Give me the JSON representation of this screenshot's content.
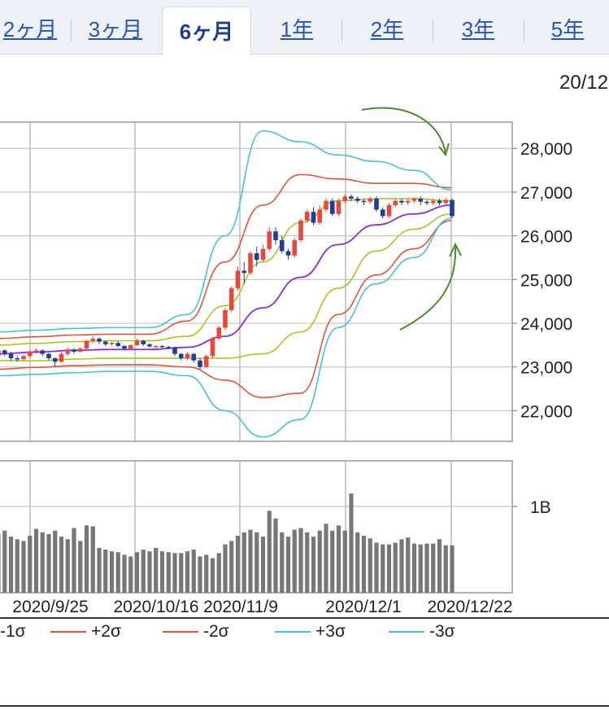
{
  "tabs": [
    {
      "label": "2ヶ月"
    },
    {
      "label": "3ヶ月"
    },
    {
      "label": "6ヶ月"
    },
    {
      "label": "1年"
    },
    {
      "label": "2年"
    },
    {
      "label": "3年"
    },
    {
      "label": "5年"
    }
  ],
  "active_tab": "6ヶ月",
  "date_header": "20/12",
  "colors": {
    "sma": "#8a2be2",
    "sigma1": "#a8c81e",
    "sigma2": "#e0553a",
    "sigma3": "#46c2d8",
    "candle_up": "#e8473e",
    "candle_down": "#1d3e9a",
    "volume": "#777777",
    "annotation": "#4a8c2a"
  },
  "legend": [
    {
      "label": "-1σ",
      "color": "#a8c81e"
    },
    {
      "label": "+2σ",
      "color": "#e0553a"
    },
    {
      "label": "-2σ",
      "color": "#e0553a"
    },
    {
      "label": "+3σ",
      "color": "#46c2d8"
    },
    {
      "label": "-3σ",
      "color": "#46c2d8"
    }
  ],
  "chart_data": {
    "type": "line",
    "ylim": [
      21300,
      28600
    ],
    "yticks": [
      "28,000",
      "27,000",
      "26,000",
      "25,000",
      "24,000",
      "23,000",
      "22,000"
    ],
    "xticks": [
      "2020/9/25",
      "2020/10/16",
      "2020/11/9",
      "2020/12/1",
      "2020/12/22"
    ],
    "volume_tick": "1B",
    "series": [
      {
        "key": "sma",
        "values": [
          23300,
          23340,
          23380,
          23400,
          23400,
          23450,
          23700,
          24350,
          25050,
          25800,
          26250,
          26500,
          26700
        ]
      },
      {
        "key": "p1",
        "values": [
          23500,
          23540,
          23580,
          23600,
          23600,
          23700,
          24400,
          25400,
          26300,
          26800,
          26850,
          26850,
          26800
        ]
      },
      {
        "key": "m1",
        "values": [
          23150,
          23140,
          23180,
          23200,
          23200,
          23200,
          23200,
          23300,
          23800,
          24800,
          25650,
          26150,
          26500
        ]
      },
      {
        "key": "p2",
        "values": [
          23650,
          23690,
          23730,
          23750,
          23750,
          24050,
          25400,
          26700,
          27400,
          27300,
          27200,
          27200,
          27100
        ]
      },
      {
        "key": "m2",
        "values": [
          22950,
          22990,
          23030,
          23050,
          23050,
          23000,
          22700,
          22300,
          22400,
          24200,
          25100,
          25700,
          26350
        ]
      },
      {
        "key": "p3",
        "values": [
          23800,
          23840,
          23880,
          23900,
          23900,
          24200,
          26000,
          28400,
          28150,
          27850,
          27700,
          27500,
          27050
        ]
      },
      {
        "key": "m3",
        "values": [
          22800,
          22830,
          22870,
          22900,
          22900,
          22800,
          22000,
          21400,
          21800,
          23900,
          24900,
          25500,
          26400
        ]
      }
    ],
    "candles": [
      [
        23250,
        23380,
        23420,
        23200
      ],
      [
        23380,
        23300,
        23400,
        23250
      ],
      [
        23300,
        23200,
        23350,
        23150
      ],
      [
        23200,
        23180,
        23260,
        23120
      ],
      [
        23180,
        23250,
        23280,
        23150
      ],
      [
        23250,
        23350,
        23380,
        23200
      ],
      [
        23350,
        23380,
        23420,
        23300
      ],
      [
        23380,
        23300,
        23400,
        23250
      ],
      [
        23300,
        23200,
        23320,
        23150
      ],
      [
        23200,
        23120,
        23220,
        23000
      ],
      [
        23120,
        23300,
        23350,
        23100
      ],
      [
        23300,
        23400,
        23450,
        23250
      ],
      [
        23400,
        23350,
        23430,
        23300
      ],
      [
        23350,
        23420,
        23460,
        23320
      ],
      [
        23420,
        23600,
        23620,
        23380
      ],
      [
        23600,
        23650,
        23700,
        23550
      ],
      [
        23650,
        23580,
        23680,
        23520
      ],
      [
        23580,
        23520,
        23600,
        23480
      ],
      [
        23520,
        23550,
        23580,
        23480
      ],
      [
        23550,
        23480,
        23600,
        23450
      ],
      [
        23480,
        23420,
        23500,
        23380
      ],
      [
        23420,
        23500,
        23520,
        23400
      ],
      [
        23500,
        23600,
        23650,
        23480
      ],
      [
        23600,
        23520,
        23620,
        23480
      ],
      [
        23520,
        23470,
        23540,
        23440
      ],
      [
        23470,
        23480,
        23500,
        23440
      ],
      [
        23480,
        23460,
        23500,
        23430
      ],
      [
        23460,
        23450,
        23480,
        23420
      ],
      [
        23450,
        23300,
        23470,
        23250
      ],
      [
        23300,
        23200,
        23320,
        23150
      ],
      [
        23200,
        23300,
        23350,
        23150
      ],
      [
        23300,
        23150,
        23320,
        23100
      ],
      [
        23150,
        23000,
        23200,
        22950
      ],
      [
        23000,
        23250,
        23280,
        22980
      ],
      [
        23250,
        23650,
        23680,
        23200
      ],
      [
        23650,
        23900,
        23950,
        23600
      ],
      [
        23900,
        24300,
        24350,
        23850
      ],
      [
        24300,
        24800,
        24850,
        24250
      ],
      [
        24800,
        25200,
        25300,
        24750
      ],
      [
        25200,
        25150,
        25400,
        24900
      ],
      [
        25150,
        25600,
        25650,
        25100
      ],
      [
        25600,
        25450,
        25750,
        25300
      ],
      [
        25450,
        25700,
        25800,
        25400
      ],
      [
        25700,
        26100,
        26200,
        25650
      ],
      [
        26100,
        25900,
        26200,
        25800
      ],
      [
        25900,
        25650,
        26000,
        25600
      ],
      [
        25650,
        25550,
        25700,
        25450
      ],
      [
        25550,
        25900,
        25950,
        25500
      ],
      [
        25900,
        26350,
        26400,
        25850
      ],
      [
        26350,
        26550,
        26600,
        26300
      ],
      [
        26550,
        26300,
        26650,
        26250
      ],
      [
        26300,
        26600,
        26700,
        26250
      ],
      [
        26600,
        26800,
        26850,
        26550
      ],
      [
        26800,
        26500,
        26850,
        26450
      ],
      [
        26500,
        26800,
        26850,
        26450
      ],
      [
        26800,
        26900,
        26950,
        26750
      ],
      [
        26900,
        26850,
        26950,
        26800
      ],
      [
        26850,
        26800,
        26900,
        26750
      ],
      [
        26800,
        26780,
        26850,
        26700
      ],
      [
        26780,
        26850,
        26900,
        26730
      ],
      [
        26850,
        26600,
        26900,
        26550
      ],
      [
        26600,
        26450,
        26650,
        26400
      ],
      [
        26450,
        26700,
        26750,
        26400
      ],
      [
        26700,
        26800,
        26850,
        26650
      ],
      [
        26800,
        26760,
        26850,
        26700
      ],
      [
        26760,
        26800,
        26850,
        26700
      ],
      [
        26800,
        26850,
        26880,
        26750
      ],
      [
        26850,
        26780,
        26900,
        26700
      ],
      [
        26780,
        26750,
        26820,
        26700
      ],
      [
        26750,
        26800,
        26850,
        26700
      ],
      [
        26800,
        26750,
        26850,
        26700
      ],
      [
        26750,
        26820,
        26870,
        26700
      ],
      [
        26820,
        26450,
        26850,
        26400
      ]
    ],
    "volume": [
      0.68,
      0.72,
      0.65,
      0.62,
      0.6,
      0.66,
      0.74,
      0.7,
      0.68,
      0.72,
      0.65,
      0.62,
      0.75,
      0.6,
      0.78,
      0.77,
      0.52,
      0.5,
      0.48,
      0.47,
      0.44,
      0.42,
      0.47,
      0.5,
      0.48,
      0.52,
      0.48,
      0.47,
      0.46,
      0.46,
      0.48,
      0.5,
      0.42,
      0.44,
      0.4,
      0.46,
      0.56,
      0.6,
      0.66,
      0.7,
      0.73,
      0.7,
      0.65,
      0.95,
      0.86,
      0.7,
      0.65,
      0.73,
      0.75,
      0.7,
      0.65,
      0.72,
      0.8,
      0.72,
      0.78,
      0.72,
      1.15,
      0.7,
      0.66,
      0.63,
      0.58,
      0.56,
      0.56,
      0.58,
      0.62,
      0.64,
      0.57,
      0.56,
      0.57,
      0.57,
      0.62,
      0.55,
      0.55
    ]
  }
}
